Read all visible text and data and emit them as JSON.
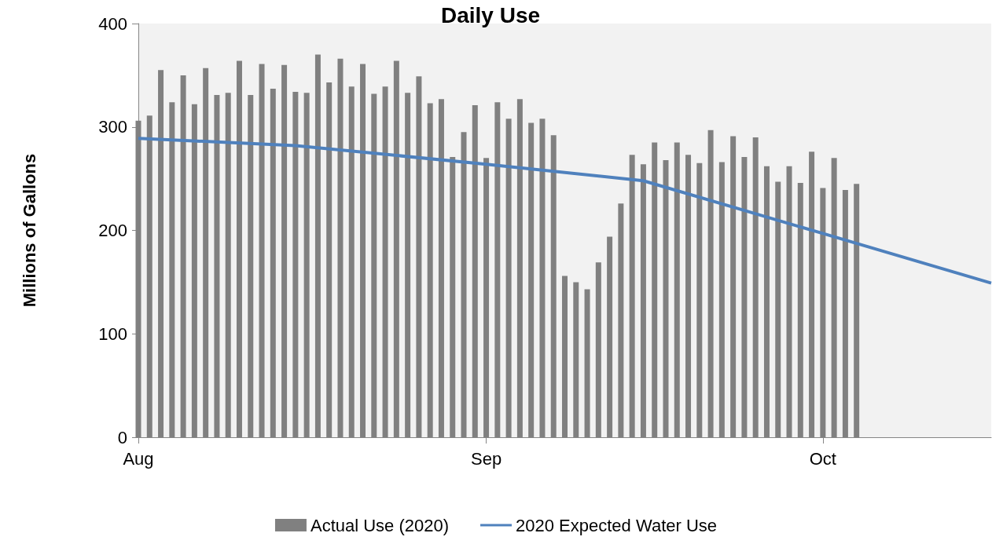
{
  "chart_data": {
    "type": "bar",
    "title": "Daily Use",
    "ylabel": "Millions of Gallons",
    "x": [
      "--08-01",
      "--08-02",
      "--08-03",
      "--08-04",
      "--08-05",
      "--08-06",
      "--08-07",
      "--08-08",
      "--08-09",
      "--08-10",
      "--08-11",
      "--08-12",
      "--08-13",
      "--08-14",
      "--08-15",
      "--08-16",
      "--08-17",
      "--08-18",
      "--08-19",
      "--08-20",
      "--08-21",
      "--08-22",
      "--08-23",
      "--08-24",
      "--08-25",
      "--08-26",
      "--08-27",
      "--08-28",
      "--08-29",
      "--08-30",
      "--08-31",
      "--09-01",
      "--09-02",
      "--09-03",
      "--09-04",
      "--09-05",
      "--09-06",
      "--09-07",
      "--09-08",
      "--09-09",
      "--09-10",
      "--09-11",
      "--09-12",
      "--09-13",
      "--09-14",
      "--09-15",
      "--09-16",
      "--09-17",
      "--09-18",
      "--09-19",
      "--09-20",
      "--09-21",
      "--09-22",
      "--09-23",
      "--09-24",
      "--09-25",
      "--09-26",
      "--09-27",
      "--09-28",
      "--09-29",
      "--09-30",
      "--10-01",
      "--10-02",
      "--10-03",
      "--10-04"
    ],
    "series": [
      {
        "name": "Actual Use (2020)",
        "color": "#808080",
        "values": [
          306,
          311,
          355,
          324,
          350,
          322,
          357,
          331,
          333,
          364,
          331,
          361,
          337,
          360,
          334,
          333,
          370,
          343,
          366,
          339,
          361,
          332,
          339,
          364,
          333,
          349,
          323,
          327,
          271,
          295,
          321,
          270,
          324,
          308,
          327,
          304,
          308,
          292,
          156,
          150,
          143,
          169,
          194,
          226,
          273,
          264,
          285,
          268,
          285,
          273,
          265,
          297,
          266,
          291,
          271,
          290,
          262,
          247,
          262,
          246,
          276,
          241,
          270,
          239,
          245
        ]
      },
      {
        "name": "2020 Expected Water Use",
        "type": "line",
        "color": "#4f81bd",
        "x": [
          "--08-01",
          "--08-15",
          "--09-01",
          "--09-15",
          "--10-01",
          "--10-16"
        ],
        "values": [
          289,
          282,
          264,
          248,
          197,
          149
        ]
      }
    ],
    "xlim": [
      "--08-01",
      "--10-16"
    ],
    "xticks": [
      {
        "value": "--08-01",
        "label": "Aug"
      },
      {
        "value": "--09-01",
        "label": "Sep"
      },
      {
        "value": "--10-01",
        "label": "Oct"
      }
    ],
    "ylim": [
      0,
      400
    ],
    "yticks": [
      0,
      100,
      200,
      300,
      400
    ],
    "grid": false,
    "legend": "bottom",
    "marker": "none",
    "line_style": "solid"
  }
}
